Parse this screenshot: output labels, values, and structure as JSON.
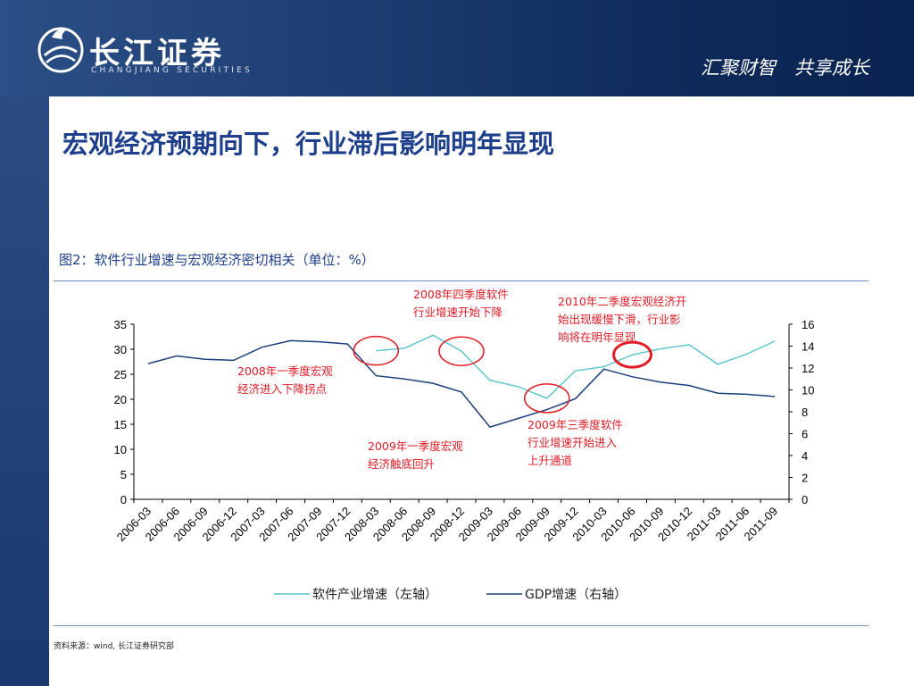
{
  "header": {
    "logo_cn": "长江证券",
    "logo_en": "CHANGJIANG SECURITIES",
    "slogan": "汇聚财智　共享成长"
  },
  "page_title": "宏观经济预期向下，行业滞后影响明年显现",
  "figure_title": "图2：软件行业增速与宏观经济密切相关（单位：%）",
  "source": "资料来源：wind, 长江证券研究部",
  "annotations": [
    {
      "id": "a1",
      "line1": "2008年四季度软件",
      "line2": "行业增速开始下降"
    },
    {
      "id": "a2",
      "line1": "2010年二季度宏观经济开",
      "line2": "始出现缓慢下滑，行业影",
      "line3": "响将在明年显现"
    },
    {
      "id": "a3",
      "line1": "2008年一季度宏观",
      "line2": "经济进入下降拐点"
    },
    {
      "id": "a4",
      "line1": "2009年三季度软件",
      "line2": "行业增速开始进入",
      "line3": "上升通道"
    },
    {
      "id": "a5",
      "line1": "2009年一季度宏观",
      "line2": "经济触底回升"
    }
  ],
  "colors": {
    "software": "#56c2cf",
    "gdp": "#1b3f7a",
    "circle": "#e01b24",
    "title": "#1e3f8c"
  },
  "chart_data": {
    "type": "line",
    "categories": [
      "2006-03",
      "2006-06",
      "2006-09",
      "2006-12",
      "2007-03",
      "2007-06",
      "2007-09",
      "2007-12",
      "2008-03",
      "2008-06",
      "2008-09",
      "2008-12",
      "2009-03",
      "2009-06",
      "2009-09",
      "2009-12",
      "2010-03",
      "2010-06",
      "2010-09",
      "2010-12",
      "2011-03",
      "2011-06",
      "2011-09"
    ],
    "y_left": {
      "min": 0,
      "max": 35,
      "ticks": [
        0,
        5,
        10,
        15,
        20,
        25,
        30,
        35
      ]
    },
    "y_right": {
      "min": 0,
      "max": 16,
      "ticks": [
        0,
        2,
        4,
        6,
        8,
        10,
        12,
        14,
        16
      ]
    },
    "series": [
      {
        "name": "软件产业增速（左轴）",
        "axis": "left",
        "values": [
          null,
          null,
          null,
          null,
          null,
          null,
          null,
          null,
          29.7,
          30.2,
          32.8,
          29.6,
          23.8,
          22.5,
          20.2,
          25.7,
          26.5,
          28.9,
          30.1,
          30.9,
          27.0,
          29.0,
          31.6
        ]
      },
      {
        "name": "GDP增速（右轴）",
        "axis": "right",
        "values": [
          12.4,
          13.1,
          12.8,
          12.7,
          13.9,
          14.5,
          14.4,
          14.2,
          11.3,
          11.0,
          10.6,
          9.8,
          6.6,
          7.4,
          8.2,
          9.2,
          11.9,
          11.2,
          10.7,
          10.4,
          9.7,
          9.6,
          9.4
        ]
      }
    ],
    "legend_position": "bottom",
    "highlight_markers": [
      {
        "axis": "left",
        "category": "2008-03"
      },
      {
        "axis": "left",
        "category": "2008-12"
      },
      {
        "axis": "left",
        "category": "2009-09"
      },
      {
        "axis": "left",
        "category": "2010-06"
      }
    ]
  }
}
